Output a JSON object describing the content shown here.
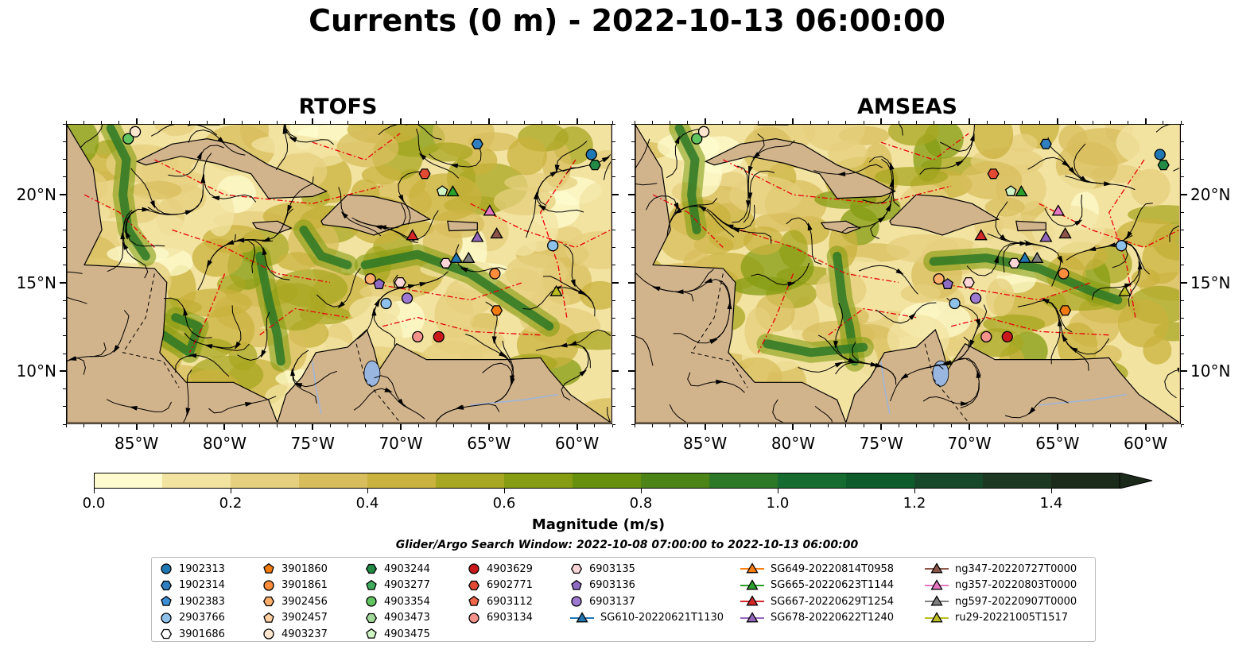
{
  "title": "Currents (0 m) - 2022-10-13 06:00:00",
  "panels": [
    {
      "title": "RTOFS"
    },
    {
      "title": "AMSEAS"
    }
  ],
  "x_ticks": [
    "85°W",
    "80°W",
    "75°W",
    "70°W",
    "65°W",
    "60°W"
  ],
  "y_ticks": [
    "20°N",
    "15°N",
    "10°N"
  ],
  "map_extent": {
    "lon": [
      -89,
      -58
    ],
    "lat": [
      7,
      24
    ]
  },
  "colorbar": {
    "label": "Magnitude (m/s)",
    "ticks": [
      "0.0",
      "0.2",
      "0.4",
      "0.6",
      "0.8",
      "1.0",
      "1.2",
      "1.4"
    ],
    "range": [
      0,
      1.5
    ],
    "colors": [
      "#fefbce",
      "#f2e3a1",
      "#e6cf7e",
      "#d8bd5c",
      "#c9b23e",
      "#a8a722",
      "#869c13",
      "#67900f",
      "#4c8417",
      "#2d7826",
      "#166c30",
      "#0e5b2c",
      "#17482a",
      "#1c3823",
      "#1b2a1a"
    ]
  },
  "search_window": "Glider/Argo Search Window: 2022-10-08 07:00:00 to 2022-10-13 06:00:00",
  "legend": {
    "columns": [
      [
        {
          "label": "1902313",
          "marker": "circle",
          "color": "#1f77b4"
        },
        {
          "label": "1902314",
          "marker": "hexagon",
          "color": "#2f7fc1"
        },
        {
          "label": "1902383",
          "marker": "pentagon",
          "color": "#3c8fd6"
        },
        {
          "label": "2903766",
          "marker": "circle",
          "color": "#8ec2ea"
        },
        {
          "label": "3901686",
          "marker": "hexagon",
          "color": "#ffffff"
        }
      ],
      [
        {
          "label": "3901860",
          "marker": "pentagon",
          "color": "#f27b0f"
        },
        {
          "label": "3901861",
          "marker": "circle",
          "color": "#fd8d3c"
        },
        {
          "label": "3902456",
          "marker": "hexagon",
          "color": "#fdae6b"
        },
        {
          "label": "3902457",
          "marker": "pentagon",
          "color": "#fdd0a2"
        },
        {
          "label": "4903237",
          "marker": "circle",
          "color": "#fee6ce"
        }
      ],
      [
        {
          "label": "4903244",
          "marker": "hexagon",
          "color": "#238b45"
        },
        {
          "label": "4903277",
          "marker": "pentagon",
          "color": "#41ab5d"
        },
        {
          "label": "4903354",
          "marker": "circle",
          "color": "#61c460"
        },
        {
          "label": "4903473",
          "marker": "hexagon",
          "color": "#a1d99b"
        },
        {
          "label": "4903475",
          "marker": "pentagon",
          "color": "#d0f5c5"
        }
      ],
      [
        {
          "label": "4903629",
          "marker": "circle",
          "color": "#cb181d"
        },
        {
          "label": "6902771",
          "marker": "hexagon",
          "color": "#e34a33"
        },
        {
          "label": "6903112",
          "marker": "pentagon",
          "color": "#ef6548"
        },
        {
          "label": "6903134",
          "marker": "circle",
          "color": "#f4928c"
        }
      ],
      [
        {
          "label": "6903135",
          "marker": "hexagon",
          "color": "#fcd5d8"
        },
        {
          "label": "6903136",
          "marker": "pentagon",
          "color": "#8e6cc4"
        },
        {
          "label": "6903137",
          "marker": "circle",
          "color": "#9e79d1"
        },
        {
          "label": "SG610-20220621T1130",
          "marker": "triangle-line",
          "color": "#1f77b4"
        }
      ],
      [
        {
          "label": "SG649-20220814T0958",
          "marker": "triangle-line",
          "color": "#ff7f0e"
        },
        {
          "label": "SG665-20220623T1144",
          "marker": "triangle-line",
          "color": "#2ca02c"
        },
        {
          "label": "SG667-20220629T1254",
          "marker": "triangle-line",
          "color": "#d62728"
        },
        {
          "label": "SG678-20220622T1240",
          "marker": "triangle-line",
          "color": "#9467bd"
        }
      ],
      [
        {
          "label": "ng347-20220727T0000",
          "marker": "triangle-line",
          "color": "#8c564b"
        },
        {
          "label": "ng357-20220803T0000",
          "marker": "triangle-line",
          "color": "#e377c2"
        },
        {
          "label": "ng597-20220907T0000",
          "marker": "triangle-line",
          "color": "#7f7f7f"
        },
        {
          "label": "ru29-20221005T1517",
          "marker": "triangle-line",
          "color": "#bcbd22"
        }
      ]
    ]
  },
  "markers": [
    {
      "lon": -85.5,
      "lat": 23.2,
      "marker": "circle",
      "color": "#61c460"
    },
    {
      "lon": -85.1,
      "lat": 23.6,
      "marker": "circle",
      "color": "#fee6ce"
    },
    {
      "lon": -59.1,
      "lat": 22.3,
      "marker": "circle",
      "color": "#1f77b4"
    },
    {
      "lon": -58.9,
      "lat": 21.7,
      "marker": "hexagon",
      "color": "#238b45"
    },
    {
      "lon": -65.6,
      "lat": 22.9,
      "marker": "hexagon",
      "color": "#2f7fc1"
    },
    {
      "lon": -68.6,
      "lat": 21.2,
      "marker": "hexagon",
      "color": "#e34a33"
    },
    {
      "lon": -67.6,
      "lat": 20.2,
      "marker": "pentagon",
      "color": "#d0f5c5"
    },
    {
      "lon": -67.0,
      "lat": 20.2,
      "marker": "triangle",
      "color": "#2ca02c"
    },
    {
      "lon": -64.9,
      "lat": 19.1,
      "marker": "triangle",
      "color": "#e377c2"
    },
    {
      "lon": -69.3,
      "lat": 17.7,
      "marker": "triangle",
      "color": "#d62728"
    },
    {
      "lon": -65.6,
      "lat": 17.6,
      "marker": "triangle",
      "color": "#9467bd"
    },
    {
      "lon": -64.5,
      "lat": 17.8,
      "marker": "triangle",
      "color": "#8c564b"
    },
    {
      "lon": -61.3,
      "lat": 17.1,
      "marker": "circle",
      "color": "#8ec2ea"
    },
    {
      "lon": -66.8,
      "lat": 16.4,
      "marker": "triangle",
      "color": "#1f77b4"
    },
    {
      "lon": -66.1,
      "lat": 16.4,
      "marker": "triangle",
      "color": "#7f7f7f"
    },
    {
      "lon": -67.4,
      "lat": 16.1,
      "marker": "hexagon",
      "color": "#fcd5d8"
    },
    {
      "lon": -64.6,
      "lat": 15.5,
      "marker": "circle",
      "color": "#fd8d3c"
    },
    {
      "lon": -71.7,
      "lat": 15.2,
      "marker": "circle",
      "color": "#fdae6b"
    },
    {
      "lon": -71.2,
      "lat": 14.9,
      "marker": "pentagon",
      "color": "#8e6cc4"
    },
    {
      "lon": -70.0,
      "lat": 15.0,
      "marker": "hexagon",
      "color": "#fcd5d8"
    },
    {
      "lon": -70.8,
      "lat": 13.8,
      "marker": "circle",
      "color": "#8ec2ea"
    },
    {
      "lon": -69.6,
      "lat": 14.1,
      "marker": "circle",
      "color": "#9e79d1"
    },
    {
      "lon": -64.5,
      "lat": 13.4,
      "marker": "hexagon",
      "color": "#f27b0f"
    },
    {
      "lon": -61.1,
      "lat": 14.5,
      "marker": "triangle",
      "color": "#bcbd22"
    },
    {
      "lon": -69.0,
      "lat": 11.9,
      "marker": "circle",
      "color": "#f4928c"
    },
    {
      "lon": -67.8,
      "lat": 11.9,
      "marker": "circle",
      "color": "#cb181d"
    }
  ]
}
